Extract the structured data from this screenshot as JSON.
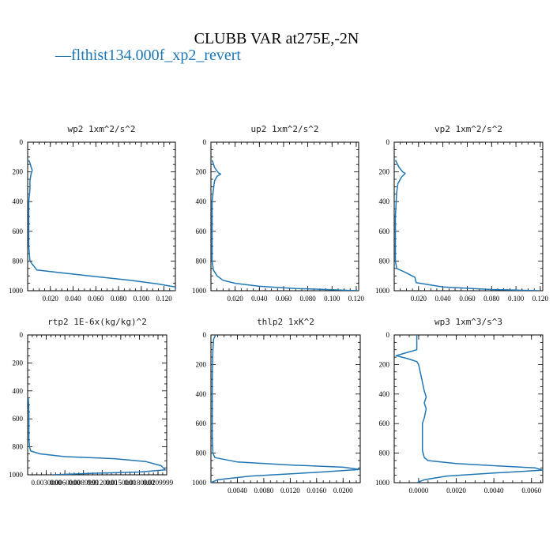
{
  "figure": {
    "title": "CLUBB VAR at275E,-2N",
    "legend": {
      "marker": "—",
      "label": "flthist134.000f_xp2_revert",
      "color": "#1f77b4"
    }
  },
  "chart_data": [
    {
      "type": "line",
      "title": "wp2  1xm^2/s^2",
      "xlim": [
        0.0,
        0.13
      ],
      "ylim": [
        1000,
        0
      ],
      "xticks": [
        0.02,
        0.04,
        0.06,
        0.08,
        0.1,
        0.12
      ],
      "xtick_labels": [
        "0.020",
        "0.040",
        "0.060",
        "0.080",
        "0.100",
        "0.120"
      ],
      "yticks": [
        0,
        200,
        400,
        600,
        800,
        1000
      ],
      "ytick_labels": [
        "0",
        "200",
        "400",
        "600",
        "800",
        "1000"
      ],
      "series": [
        {
          "color": "#1f77b4",
          "x": [
            0.001,
            0.002,
            0.003,
            0.004,
            0.003,
            0.002,
            0.002,
            0.001,
            0.001,
            0.001,
            0.001,
            0.002,
            0.008,
            0.03,
            0.06,
            0.09,
            0.115,
            0.13,
            0.13
          ],
          "y": [
            120,
            140,
            165,
            190,
            215,
            260,
            320,
            400,
            500,
            600,
            700,
            800,
            860,
            880,
            905,
            930,
            955,
            975,
            1000
          ]
        }
      ]
    },
    {
      "type": "line",
      "title": "up2  1xm^2/s^2",
      "xlim": [
        0.0,
        0.122
      ],
      "ylim": [
        1000,
        0
      ],
      "xticks": [
        0.02,
        0.04,
        0.06,
        0.08,
        0.1,
        0.12
      ],
      "xtick_labels": [
        "0.020",
        "0.040",
        "0.060",
        "0.080",
        "0.100",
        "0.120"
      ],
      "yticks": [
        0,
        200,
        400,
        600,
        800,
        1000
      ],
      "ytick_labels": [
        "0",
        "200",
        "400",
        "600",
        "800",
        "1000"
      ],
      "series": [
        {
          "color": "#1f77b4",
          "x": [
            0.001,
            0.003,
            0.006,
            0.008,
            0.005,
            0.003,
            0.002,
            0.001,
            0.001,
            0.001,
            0.002,
            0.005,
            0.01,
            0.02,
            0.04,
            0.07,
            0.1,
            0.122
          ],
          "y": [
            120,
            170,
            205,
            215,
            230,
            260,
            320,
            400,
            600,
            800,
            860,
            900,
            930,
            950,
            970,
            985,
            993,
            1000
          ]
        }
      ]
    },
    {
      "type": "line",
      "title": "vp2  1xm^2/s^2",
      "xlim": [
        0.0,
        0.122
      ],
      "ylim": [
        1000,
        0
      ],
      "xticks": [
        0.02,
        0.04,
        0.06,
        0.08,
        0.1,
        0.12
      ],
      "xtick_labels": [
        "0.020",
        "0.040",
        "0.060",
        "0.080",
        "0.100",
        "0.120"
      ],
      "yticks": [
        0,
        200,
        400,
        600,
        800,
        1000
      ],
      "ytick_labels": [
        "0",
        "200",
        "400",
        "600",
        "800",
        "1000"
      ],
      "series": [
        {
          "color": "#1f77b4",
          "x": [
            0.001,
            0.004,
            0.007,
            0.009,
            0.006,
            0.003,
            0.002,
            0.001,
            0.001,
            0.002,
            0.01,
            0.017,
            0.018,
            0.04,
            0.08,
            0.12
          ],
          "y": [
            120,
            170,
            200,
            210,
            235,
            280,
            340,
            500,
            800,
            850,
            880,
            910,
            945,
            975,
            992,
            1000
          ]
        }
      ]
    },
    {
      "type": "line",
      "title": "rtp2  1E-6x(kg/kg)^2",
      "xlim": [
        0.0,
        0.0224
      ],
      "ylim": [
        1000,
        0
      ],
      "xticks": [
        0.003,
        0.006,
        0.009,
        0.012,
        0.015,
        0.018,
        0.021
      ],
      "xtick_labels": [
        "0.0030000",
        "0.0060000",
        "0.0089999",
        "0.0120000",
        "0.0150000",
        "0.0180000",
        "0.0209999"
      ],
      "yticks": [
        0,
        200,
        400,
        600,
        800,
        1000
      ],
      "ytick_labels": [
        "0",
        "200",
        "400",
        "600",
        "800",
        "1000"
      ],
      "series": [
        {
          "color": "#1f77b4",
          "x": [
            0.0001,
            0.0002,
            0.0002,
            0.0002,
            0.0003,
            0.0005,
            0.002,
            0.006,
            0.014,
            0.019,
            0.0215,
            0.0222,
            0.018,
            0.01,
            0.004
          ],
          "y": [
            450,
            550,
            650,
            750,
            800,
            830,
            850,
            870,
            885,
            905,
            935,
            965,
            980,
            990,
            1000
          ]
        }
      ]
    },
    {
      "type": "line",
      "title": "thlp2  1xK^2",
      "xlim": [
        0.0,
        0.0226
      ],
      "ylim": [
        1000,
        0
      ],
      "xticks": [
        0.004,
        0.008,
        0.012,
        0.016,
        0.02
      ],
      "xtick_labels": [
        "0.0040",
        "0.0080",
        "0.0120",
        "0.0160",
        "0.0200"
      ],
      "yticks": [
        0,
        200,
        400,
        600,
        800,
        1000
      ],
      "ytick_labels": [
        "0",
        "200",
        "400",
        "600",
        "800",
        "1000"
      ],
      "series": [
        {
          "color": "#1f77b4",
          "x": [
            0.0007,
            0.0004,
            0.0003,
            0.0002,
            0.0002,
            0.0002,
            0.0003,
            0.0006,
            0.004,
            0.012,
            0.02,
            0.0226,
            0.016,
            0.006,
            0.001,
            0.0
          ],
          "y": [
            0,
            30,
            100,
            300,
            500,
            700,
            800,
            830,
            860,
            880,
            895,
            910,
            930,
            955,
            980,
            1000
          ]
        }
      ]
    },
    {
      "type": "line",
      "title": "wp3  1xm^3/s^3",
      "xlim": [
        -0.0013,
        0.0066
      ],
      "ylim": [
        1000,
        0
      ],
      "xticks": [
        0.0,
        0.002,
        0.004,
        0.006
      ],
      "xtick_labels": [
        "0.0000",
        "0.0020",
        "0.0040",
        "0.0060"
      ],
      "yticks": [
        0,
        200,
        400,
        600,
        800,
        1000
      ],
      "ytick_labels": [
        "0",
        "200",
        "400",
        "600",
        "800",
        "1000"
      ],
      "series": [
        {
          "color": "#1f77b4",
          "x": [
            -0.0001,
            -0.0001,
            -0.0012,
            -0.0006,
            -0.0001,
            0.0,
            0.0001,
            0.0002,
            0.0003,
            0.0004,
            0.0003,
            0.0004,
            0.0003,
            0.0002,
            0.0002,
            0.0002,
            0.0003,
            0.0005,
            0.002,
            0.004,
            0.0062,
            0.0066,
            0.004,
            0.0015,
            0.0003,
            -0.0001
          ],
          "y": [
            0,
            100,
            140,
            160,
            180,
            200,
            260,
            320,
            380,
            420,
            460,
            500,
            560,
            600,
            700,
            780,
            830,
            850,
            870,
            885,
            900,
            915,
            935,
            955,
            980,
            1000
          ]
        }
      ]
    }
  ]
}
